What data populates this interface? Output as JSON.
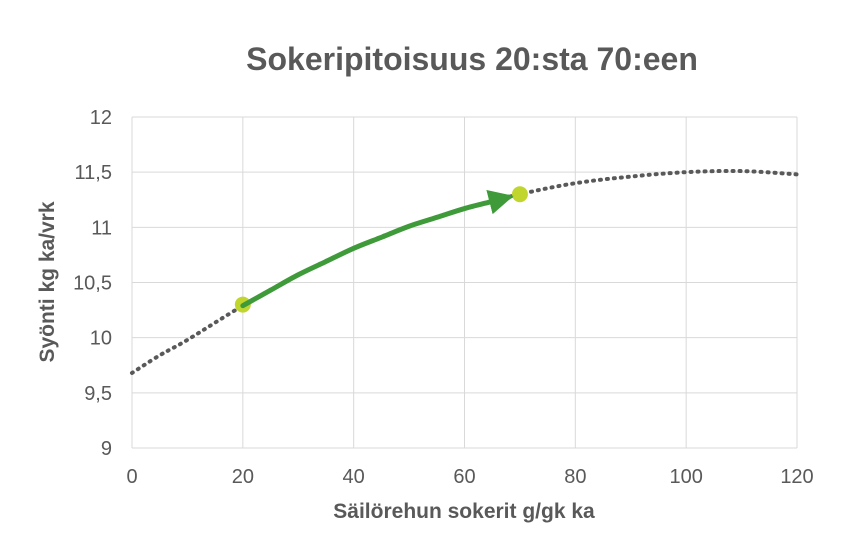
{
  "chart_data": {
    "type": "line",
    "title": "Sokeripitoisuus 20:sta 70:een",
    "xlabel": "Säilörehun sokerit g/gk ka",
    "ylabel": "Syönti kg ka/vrk",
    "xlim": [
      0,
      120
    ],
    "ylim": [
      9,
      12
    ],
    "x_ticks": [
      0,
      20,
      40,
      60,
      80,
      100,
      120
    ],
    "y_ticks": [
      9,
      9.5,
      10,
      10.5,
      11,
      11.5,
      12
    ],
    "y_tick_labels": [
      "9",
      "9,5",
      "10",
      "10,5",
      "11",
      "11,5",
      "12"
    ],
    "grid": "vertical and horizontal",
    "legend": "none",
    "series": [
      {
        "style": "dotted",
        "color": "#595959",
        "x": [
          0,
          5,
          10,
          20,
          30,
          40,
          50,
          60,
          70,
          80,
          90,
          100,
          110,
          120
        ],
        "values": [
          9.68,
          9.84,
          9.98,
          10.29,
          10.57,
          10.81,
          11.01,
          11.17,
          11.3,
          11.4,
          11.46,
          11.5,
          11.51,
          11.48
        ]
      }
    ],
    "highlight_points": [
      {
        "x": 20,
        "y": 10.3,
        "color": "#c0d62f"
      },
      {
        "x": 70,
        "y": 11.3,
        "color": "#c0d62f"
      }
    ],
    "arrow": {
      "from_x": 20,
      "to_x": 70,
      "color": "#3f9a3a"
    }
  }
}
